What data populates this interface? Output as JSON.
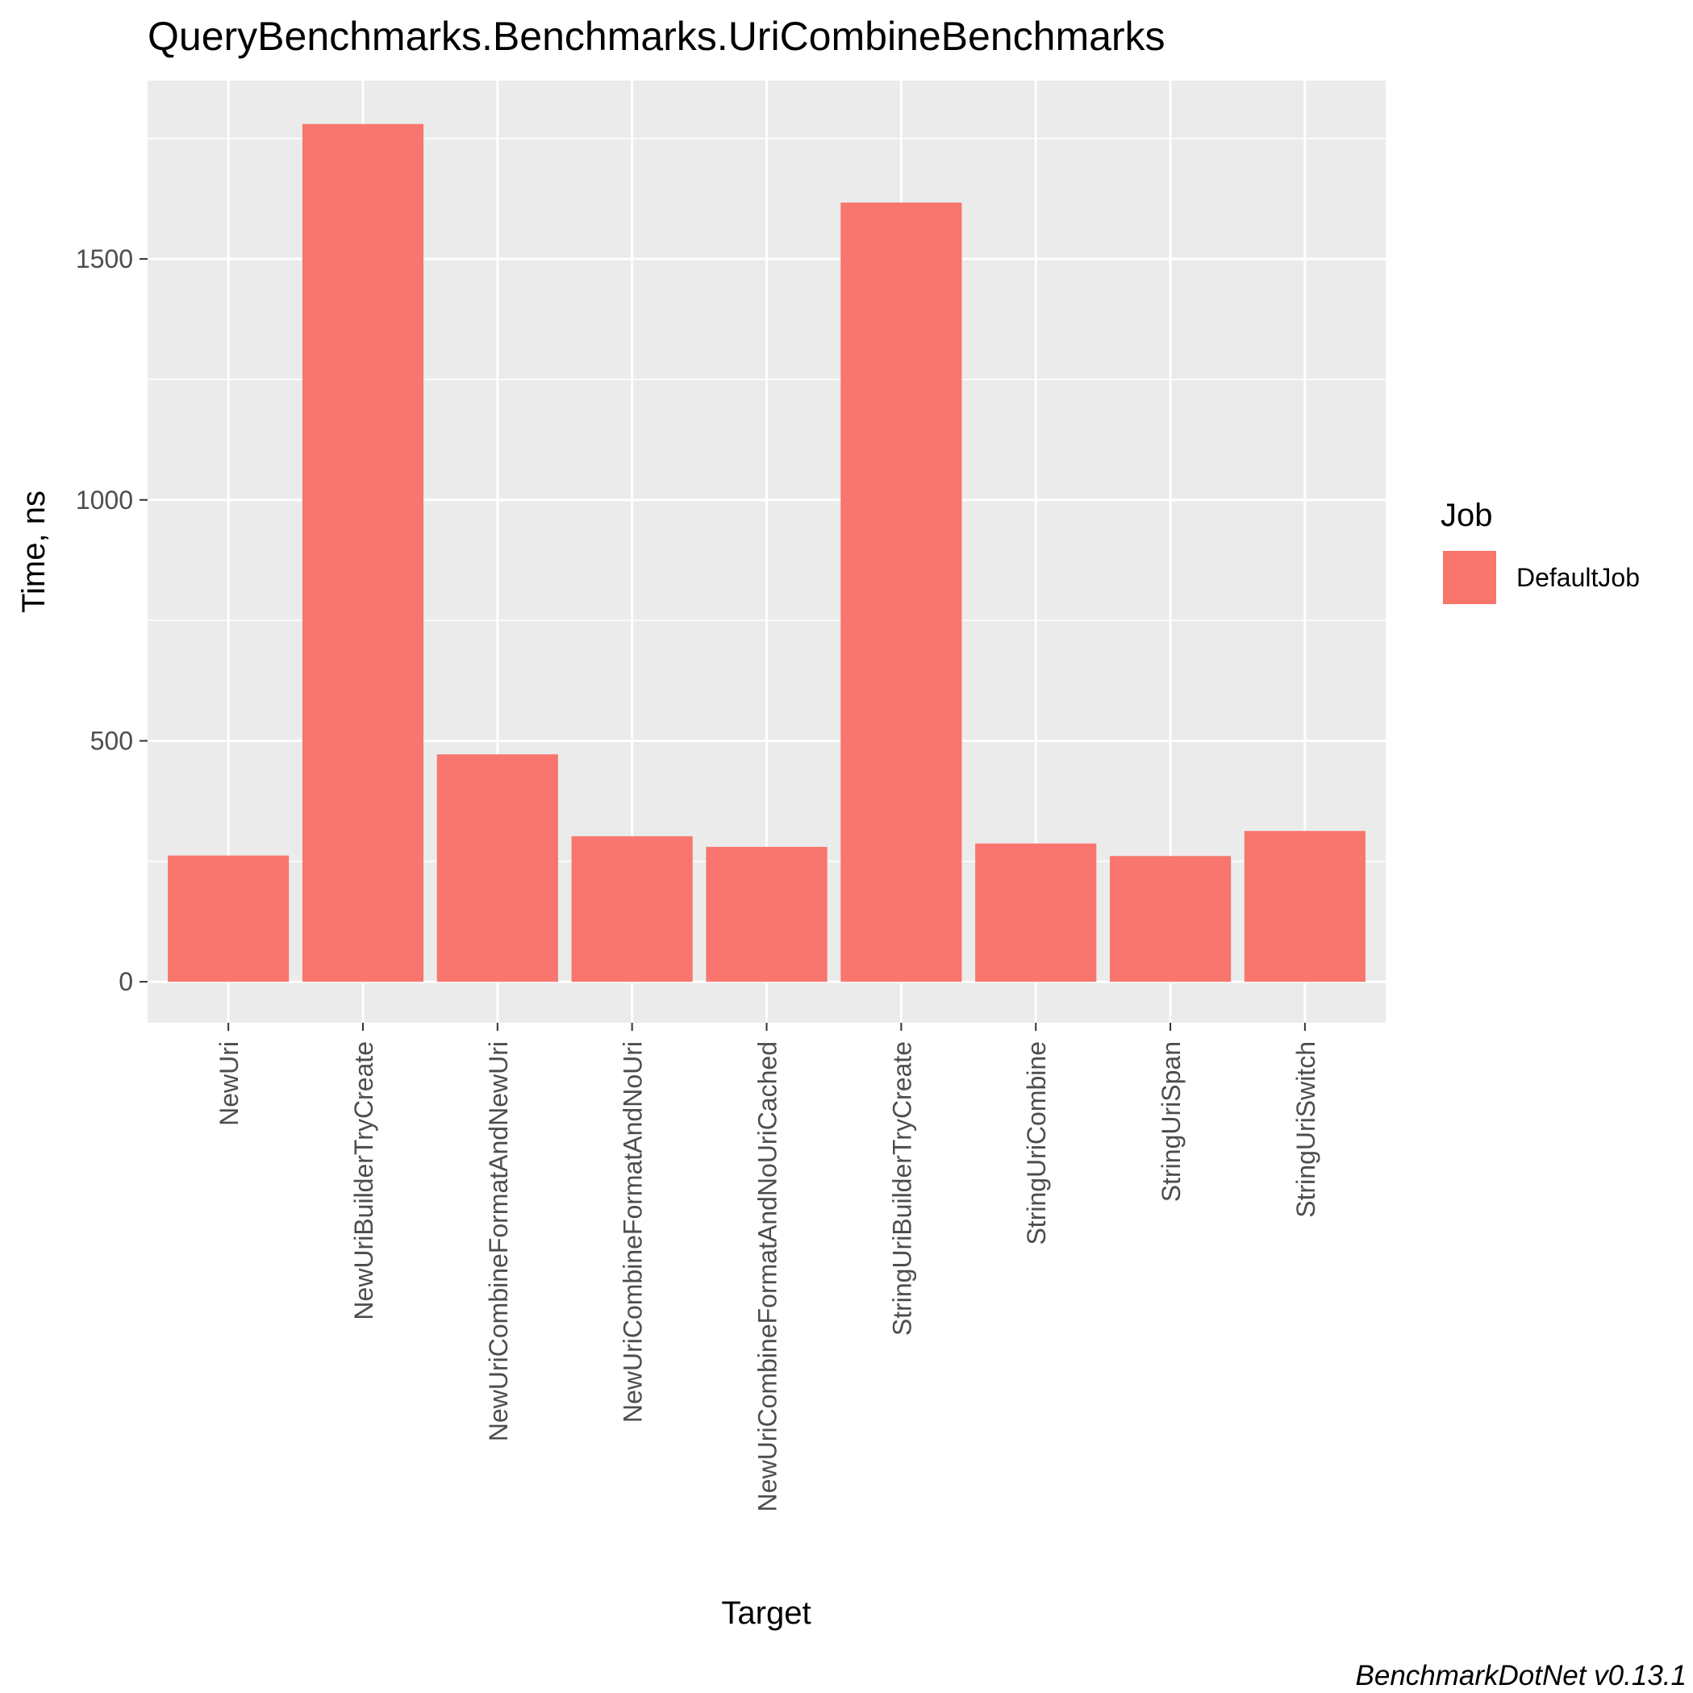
{
  "chart_data": {
    "type": "bar",
    "title": "QueryBenchmarks.Benchmarks.UriCombineBenchmarks",
    "xlabel": "Target",
    "ylabel": "Time, ns",
    "categories": [
      "NewUri",
      "NewUriBuilderTryCreate",
      "NewUriCombineFormatAndNewUri",
      "NewUriCombineFormatAndNoUri",
      "NewUriCombineFormatAndNoUriCached",
      "StringUriBuilderTryCreate",
      "StringUriCombine",
      "StringUriSpan",
      "StringUriSwitch"
    ],
    "series": [
      {
        "name": "DefaultJob",
        "values": [
          262,
          1780,
          472,
          302,
          280,
          1617,
          287,
          261,
          313
        ]
      }
    ],
    "ylim": [
      -85,
      1870
    ],
    "yticks": [
      0,
      500,
      1000,
      1500
    ],
    "ytick_labels": [
      "0",
      "500",
      "1000",
      "1500"
    ],
    "grid": true,
    "legend": {
      "title": "Job",
      "position": "right"
    },
    "caption": "BenchmarkDotNet v0.13.1",
    "colors": {
      "bar": "#F8766D",
      "panel": "#EBEBEB",
      "grid": "#FFFFFF"
    }
  }
}
